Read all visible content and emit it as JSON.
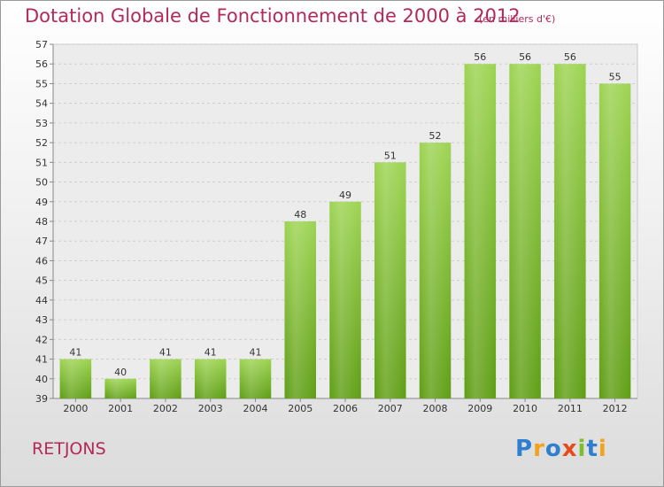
{
  "header": {
    "title": "Dotation Globale de Fonctionnement de 2000 à 2012",
    "subtitle": "(en milliers d'€)"
  },
  "footer": {
    "commune": "RETJONS",
    "logo_text": "Proxiti"
  },
  "colors": {
    "title": "#b4285a",
    "bar_top": "#9dd452",
    "bar_bottom": "#5f9e15"
  },
  "chart_data": {
    "type": "bar",
    "title": "Dotation Globale de Fonctionnement de 2000 à 2012",
    "subtitle": "(en milliers d'€)",
    "categories": [
      "2000",
      "2001",
      "2002",
      "2003",
      "2004",
      "2005",
      "2006",
      "2007",
      "2008",
      "2009",
      "2010",
      "2011",
      "2012"
    ],
    "values": [
      41,
      40,
      41,
      41,
      41,
      48,
      49,
      51,
      52,
      56,
      56,
      56,
      55
    ],
    "ylim": [
      39,
      57
    ],
    "y_ticks": [
      39,
      40,
      41,
      42,
      43,
      44,
      45,
      46,
      47,
      48,
      49,
      50,
      51,
      52,
      53,
      54,
      55,
      56,
      57
    ],
    "grid": true,
    "data_labels": true
  }
}
